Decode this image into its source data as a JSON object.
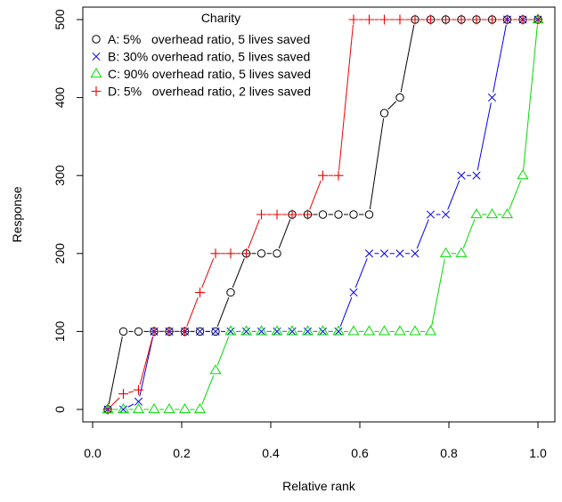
{
  "chart_data": {
    "type": "line",
    "xlabel": "Relative rank",
    "ylabel": "Response",
    "xlim": [
      0,
      1
    ],
    "ylim": [
      0,
      500
    ],
    "xticks": [
      0,
      0.2,
      0.4,
      0.6,
      0.8,
      1
    ],
    "xtick_labels": [
      "0.0",
      "0.2",
      "0.4",
      "0.6",
      "0.8",
      "1.0"
    ],
    "yticks": [
      0,
      100,
      200,
      300,
      400,
      500
    ],
    "ytick_labels": [
      "0",
      "100",
      "200",
      "300",
      "400",
      "500"
    ],
    "grid": false,
    "legend": {
      "title": "Charity",
      "placement": "top-left"
    },
    "series": [
      {
        "name": "A: 5%   overhead ratio, 5 lives saved",
        "color": "#000000",
        "marker": "circle",
        "x": [
          0.034,
          0.069,
          0.103,
          0.138,
          0.172,
          0.207,
          0.241,
          0.276,
          0.31,
          0.345,
          0.379,
          0.414,
          0.448,
          0.483,
          0.517,
          0.552,
          0.586,
          0.621,
          0.655,
          0.69,
          0.724,
          0.759,
          0.793,
          0.828,
          0.862,
          0.897,
          0.931,
          0.966,
          1.0
        ],
        "y": [
          0,
          100,
          100,
          100,
          100,
          100,
          100,
          100,
          150,
          200,
          200,
          200,
          250,
          250,
          250,
          250,
          250,
          250,
          380,
          400,
          500,
          500,
          500,
          500,
          500,
          500,
          500,
          500,
          500
        ]
      },
      {
        "name": "B: 30% overhead ratio, 5 lives saved",
        "color": "#0000ee",
        "marker": "cross",
        "x": [
          0.034,
          0.069,
          0.103,
          0.138,
          0.172,
          0.207,
          0.241,
          0.276,
          0.31,
          0.345,
          0.379,
          0.414,
          0.448,
          0.483,
          0.517,
          0.552,
          0.586,
          0.621,
          0.655,
          0.69,
          0.724,
          0.759,
          0.793,
          0.828,
          0.862,
          0.897,
          0.931,
          0.966,
          1.0
        ],
        "y": [
          0,
          0,
          10,
          100,
          100,
          100,
          100,
          100,
          100,
          100,
          100,
          100,
          100,
          100,
          100,
          100,
          150,
          200,
          200,
          200,
          200,
          250,
          250,
          300,
          300,
          400,
          500,
          500,
          500
        ]
      },
      {
        "name": "C: 90% overhead ratio, 5 lives saved",
        "color": "#00dd00",
        "marker": "triangle",
        "x": [
          0.034,
          0.069,
          0.103,
          0.138,
          0.172,
          0.207,
          0.241,
          0.276,
          0.31,
          0.345,
          0.379,
          0.414,
          0.448,
          0.483,
          0.517,
          0.552,
          0.586,
          0.621,
          0.655,
          0.69,
          0.724,
          0.759,
          0.793,
          0.828,
          0.862,
          0.897,
          0.931,
          0.966,
          1.0
        ],
        "y": [
          0,
          0,
          0,
          0,
          0,
          0,
          0,
          50,
          100,
          100,
          100,
          100,
          100,
          100,
          100,
          100,
          100,
          100,
          100,
          100,
          100,
          100,
          200,
          200,
          250,
          250,
          250,
          300,
          500
        ]
      },
      {
        "name": "D: 5%   overhead ratio, 2 lives saved",
        "color": "#ee0000",
        "marker": "plus",
        "x": [
          0.034,
          0.069,
          0.103,
          0.138,
          0.172,
          0.207,
          0.241,
          0.276,
          0.31,
          0.345,
          0.379,
          0.414,
          0.448,
          0.483,
          0.517,
          0.552,
          0.586,
          0.621,
          0.655,
          0.69,
          0.724,
          0.759,
          0.793,
          0.828,
          0.862,
          0.897,
          0.931,
          0.966,
          1.0
        ],
        "y": [
          0,
          20,
          25,
          100,
          100,
          100,
          150,
          200,
          200,
          200,
          250,
          250,
          250,
          250,
          300,
          300,
          500,
          500,
          500,
          500,
          500,
          500,
          500,
          500,
          500,
          500,
          500,
          500,
          500
        ]
      }
    ]
  }
}
